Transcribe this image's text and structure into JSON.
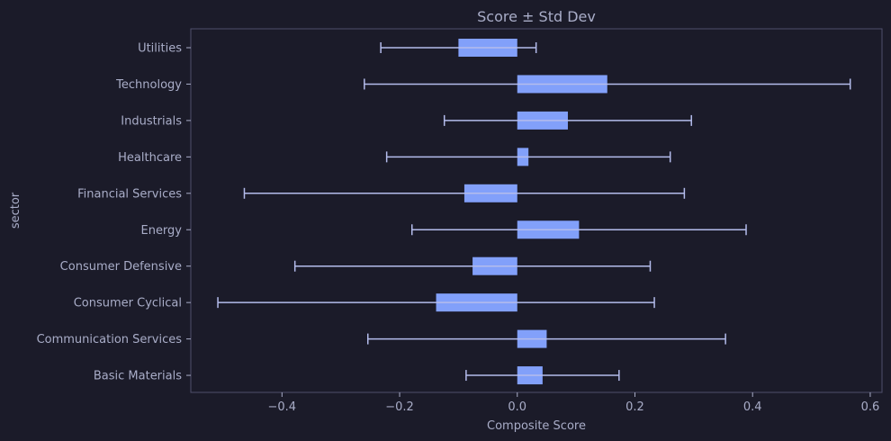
{
  "chart_data": {
    "type": "bar",
    "orientation": "horizontal",
    "title": "Score ± Std Dev",
    "xlabel": "Composite Score",
    "ylabel": "sector",
    "xlim": [
      -0.555,
      0.62
    ],
    "xticks": [
      -0.4,
      -0.2,
      0.0,
      0.2,
      0.4,
      0.6
    ],
    "xtick_labels": [
      "−0.4",
      "−0.2",
      "0.0",
      "0.2",
      "0.4",
      "0.6"
    ],
    "grid": false,
    "categories": [
      "Utilities",
      "Technology",
      "Industrials",
      "Healthcare",
      "Financial Services",
      "Energy",
      "Consumer Defensive",
      "Consumer Cyclical",
      "Communication Services",
      "Basic Materials"
    ],
    "values": [
      -0.1,
      0.153,
      0.086,
      0.019,
      -0.09,
      0.105,
      -0.076,
      -0.138,
      0.05,
      0.043
    ],
    "std": [
      0.132,
      0.413,
      0.21,
      0.241,
      0.374,
      0.284,
      0.302,
      0.371,
      0.304,
      0.13
    ],
    "colors": {
      "bar": "#82a0fa",
      "error_bar": "#b4bcec",
      "axis": "#4f4f6c",
      "text": "#a9adc8",
      "background": "#1b1b29"
    }
  }
}
